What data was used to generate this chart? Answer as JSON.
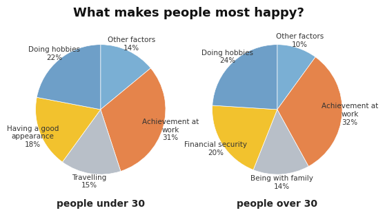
{
  "title": "What makes people most happy?",
  "chart1_label": "people under 30",
  "chart2_label": "people over 30",
  "chart1": {
    "labels": [
      "Other factors\n14%",
      "Achievement at\nwork\n31%",
      "Travelling\n15%",
      "Having a good\nappearance\n18%",
      "Doing hobbies\n22%"
    ],
    "values": [
      14,
      31,
      15,
      18,
      22
    ],
    "colors": [
      "#7aaed0",
      "#e5834a",
      "#b8bfc8",
      "#f2c030",
      "#7aaed0"
    ],
    "startangle": 90
  },
  "chart2": {
    "labels": [
      "Other factors\n10%",
      "Achievement at\nwork\n32%",
      "Being with family\n14%",
      "Financial security\n20%",
      "Doing hobbies\n24%"
    ],
    "values": [
      10,
      32,
      14,
      20,
      24
    ],
    "colors": [
      "#7aaed0",
      "#e5834a",
      "#b8bfc8",
      "#f2c030",
      "#7aaed0"
    ],
    "startangle": 90
  },
  "background_color": "#ffffff",
  "title_fontsize": 13,
  "label_fontsize": 7.5,
  "subtitle_fontsize": 10
}
